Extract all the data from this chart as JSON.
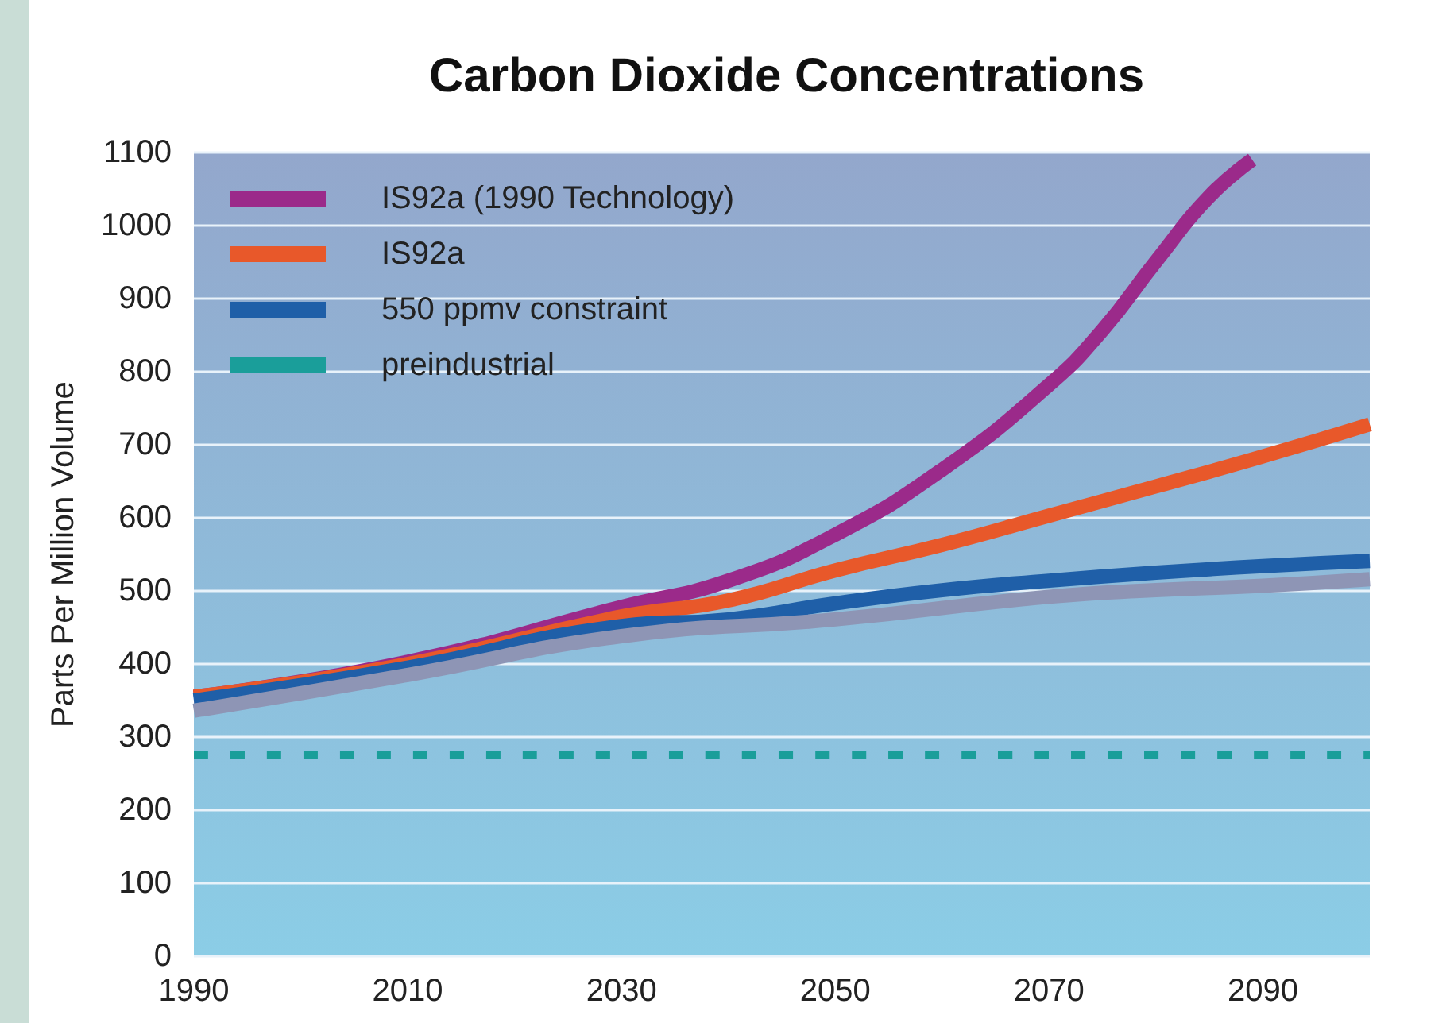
{
  "chart_data": {
    "type": "line",
    "title": "Carbon Dioxide Concentrations",
    "ylabel": "Parts Per Million Volume",
    "xlim": [
      1990,
      2100
    ],
    "xticks": [
      1990,
      2010,
      2030,
      2050,
      2070,
      2090
    ],
    "ylim": [
      0,
      1100
    ],
    "yticks": [
      0,
      100,
      200,
      300,
      400,
      500,
      600,
      700,
      800,
      900,
      1000,
      1100
    ],
    "grid": "y",
    "legend": "top left",
    "marker": "none",
    "series": [
      {
        "name": "IS92a (1990 Technology)",
        "color": "#9b2a8a",
        "x": [
          1990,
          2010,
          2030,
          2040,
          2050,
          2060,
          2070,
          2075,
          2080,
          2085,
          2089
        ],
        "values": [
          355,
          403,
          478,
          514,
          577,
          666,
          782,
          857,
          951,
          1040,
          1090
        ]
      },
      {
        "name": "IS92a",
        "color": "#e8582a",
        "x": [
          1990,
          2010,
          2030,
          2040,
          2050,
          2060,
          2070,
          2080,
          2090,
          2100
        ],
        "values": [
          355,
          400,
          465,
          487,
          528,
          563,
          603,
          643,
          684,
          728
        ]
      },
      {
        "name": "550 ppmv constraint",
        "color": "#1f5fa8",
        "x": [
          1990,
          2010,
          2030,
          2040,
          2050,
          2060,
          2070,
          2080,
          2090,
          2100
        ],
        "values": [
          350,
          395,
          452,
          461,
          483,
          501,
          514,
          525,
          534,
          541
        ]
      },
      {
        "color": "#8e95b5",
        "x": [
          1990,
          2010,
          2030,
          2050,
          2070,
          2080,
          2090,
          2100
        ],
        "values": [
          336,
          385,
          438,
          461,
          492,
          501,
          507,
          516
        ]
      },
      {
        "name": "preindustrial",
        "color": "#1a9e9a",
        "line_style": "dashed",
        "x": [
          1990,
          2100
        ],
        "values": [
          275,
          275
        ]
      }
    ]
  }
}
